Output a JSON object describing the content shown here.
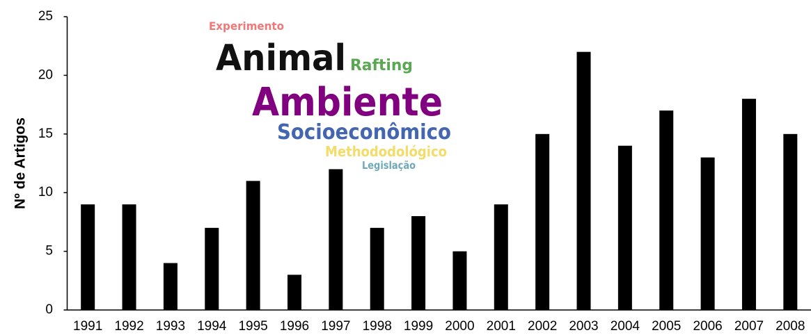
{
  "chart_data": {
    "type": "bar",
    "y_label": "Nº de Artigos",
    "categories": [
      "1991",
      "1992",
      "1993",
      "1994",
      "1995",
      "1996",
      "1997",
      "1998",
      "1999",
      "2000",
      "2001",
      "2002",
      "2003",
      "2004",
      "2005",
      "2006",
      "2007",
      "2008"
    ],
    "values": [
      9,
      9,
      4,
      7,
      11,
      3,
      12,
      7,
      8,
      5,
      9,
      15,
      22,
      14,
      17,
      13,
      18,
      15
    ],
    "color": "#000000",
    "ylim": [
      0,
      25
    ],
    "yticks": [
      0,
      5,
      10,
      15,
      20,
      25
    ],
    "grid": false,
    "annotations": [
      {
        "text": "Experimento",
        "color": "#f07878"
      },
      {
        "text": "Animal",
        "color": "#111111"
      },
      {
        "text": "Rafting",
        "color": "#5aa852"
      },
      {
        "text": "Ambiente",
        "color": "#800080"
      },
      {
        "text": "Socioeconômico",
        "color": "#4466b0"
      },
      {
        "text": "Methododológico",
        "color": "#f2dc6a"
      },
      {
        "text": "Legislação",
        "color": "#6fa8b8"
      }
    ]
  }
}
